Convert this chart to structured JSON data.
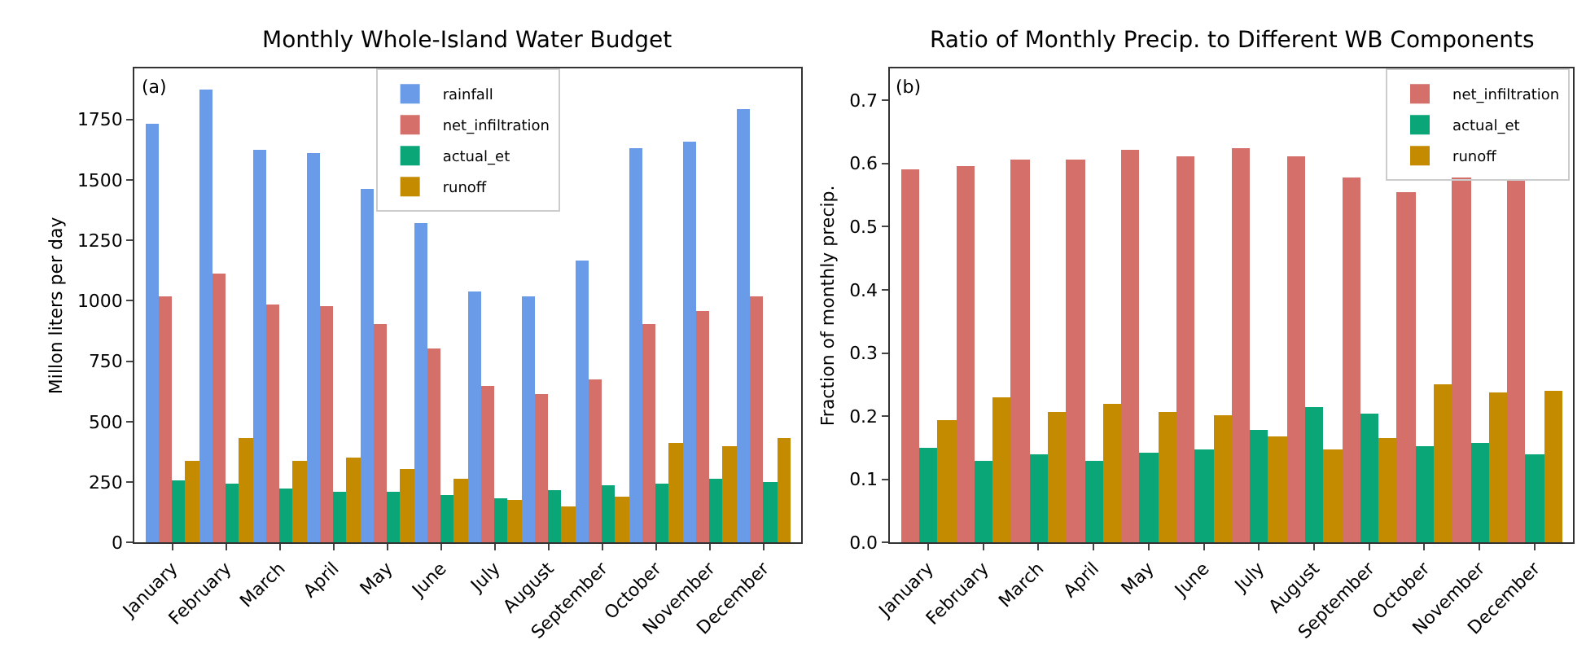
{
  "chart_data": [
    {
      "type": "bar",
      "title": "Monthly Whole-Island Water Budget",
      "ylabel": "Millon liters per day",
      "annotations": [
        "(a)"
      ],
      "categories": [
        "January",
        "February",
        "March",
        "April",
        "May",
        "June",
        "July",
        "August",
        "September",
        "October",
        "November",
        "December"
      ],
      "series": [
        {
          "name": "rainfall",
          "color": "#6a9be8",
          "values": [
            1730,
            1870,
            1625,
            1610,
            1465,
            1320,
            1040,
            1015,
            1165,
            1630,
            1655,
            1790
          ]
        },
        {
          "name": "net_infiltration",
          "color": "#d46f6a",
          "values": [
            1015,
            1110,
            985,
            975,
            905,
            805,
            650,
            615,
            675,
            905,
            955,
            1020
          ]
        },
        {
          "name": "actual_et",
          "color": "#0ba678",
          "values": [
            255,
            240,
            225,
            210,
            210,
            195,
            185,
            215,
            235,
            245,
            260,
            250
          ]
        },
        {
          "name": "runoff",
          "color": "#c48a00",
          "values": [
            335,
            430,
            335,
            350,
            305,
            265,
            175,
            150,
            190,
            410,
            395,
            430
          ]
        }
      ],
      "ylim": [
        0,
        1960
      ],
      "yticks": [
        0,
        250,
        500,
        750,
        1000,
        1250,
        1500,
        1750
      ],
      "legend": "top"
    },
    {
      "type": "bar",
      "title": "Ratio of Monthly Precip. to Different WB Components",
      "ylabel": "Fraction of monthly precip.",
      "annotations": [
        "(b)"
      ],
      "categories": [
        "January",
        "February",
        "March",
        "April",
        "May",
        "June",
        "July",
        "August",
        "September",
        "October",
        "November",
        "December"
      ],
      "series": [
        {
          "name": "net_infiltration",
          "color": "#d46f6a",
          "values": [
            0.59,
            0.595,
            0.606,
            0.605,
            0.62,
            0.61,
            0.623,
            0.61,
            0.578,
            0.555,
            0.578,
            0.574
          ]
        },
        {
          "name": "actual_et",
          "color": "#0ba678",
          "values": [
            0.15,
            0.13,
            0.14,
            0.13,
            0.143,
            0.148,
            0.178,
            0.215,
            0.203,
            0.152,
            0.158,
            0.14
          ]
        },
        {
          "name": "runoff",
          "color": "#c48a00",
          "values": [
            0.193,
            0.23,
            0.207,
            0.218,
            0.207,
            0.2,
            0.167,
            0.146,
            0.165,
            0.25,
            0.237,
            0.24
          ]
        }
      ],
      "ylim": [
        0,
        0.75
      ],
      "yticks": [
        {
          "value": 0,
          "label": "0.0"
        },
        0.1,
        0.2,
        0.3,
        0.4,
        0.5,
        0.6,
        0.7
      ],
      "legend": "top right"
    }
  ]
}
